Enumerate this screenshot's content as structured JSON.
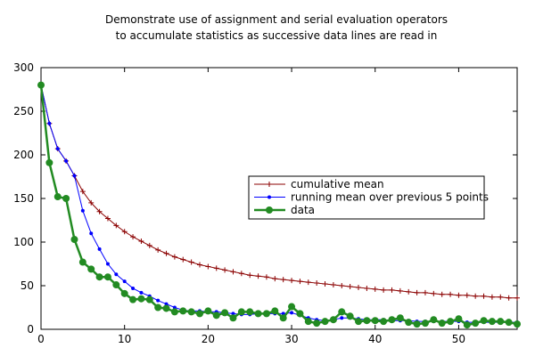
{
  "chart_data": {
    "type": "line",
    "title_lines": [
      "Demonstrate use of assignment and serial evaluation operators",
      "to accumulate statistics as successive data lines are read in"
    ],
    "xlabel": "",
    "ylabel": "",
    "xlim": [
      0,
      57
    ],
    "ylim": [
      0,
      300
    ],
    "x_ticks": [
      0,
      10,
      20,
      30,
      40,
      50
    ],
    "y_ticks": [
      0,
      50,
      100,
      150,
      200,
      250,
      300
    ],
    "grid": false,
    "legend_position": "middle-right",
    "x": [
      0,
      1,
      2,
      3,
      4,
      5,
      6,
      7,
      8,
      9,
      10,
      11,
      12,
      13,
      14,
      15,
      16,
      17,
      18,
      19,
      20,
      21,
      22,
      23,
      24,
      25,
      26,
      27,
      28,
      29,
      30,
      31,
      32,
      33,
      34,
      35,
      36,
      37,
      38,
      39,
      40,
      41,
      42,
      43,
      44,
      45,
      46,
      47,
      48,
      49,
      50,
      51,
      52,
      53,
      54,
      55,
      56,
      57
    ],
    "series": [
      {
        "name": "cumulative mean",
        "color": "#8b0000",
        "marker": "plus",
        "values": [
          280,
          236,
          207,
          193,
          176,
          158,
          145,
          135,
          127,
          119,
          112,
          106,
          101,
          96,
          91,
          87,
          83,
          80,
          77,
          74,
          72,
          70,
          68,
          66,
          64,
          62,
          61,
          60,
          58,
          57,
          56,
          55,
          54,
          53,
          52,
          51,
          50,
          49,
          48,
          47,
          46,
          45,
          45,
          44,
          43,
          42,
          42,
          41,
          40,
          40,
          39,
          39,
          38,
          38,
          37,
          37,
          36,
          36
        ]
      },
      {
        "name": "running mean over previous 5 points",
        "color": "#0000ff",
        "marker": "dot",
        "values": [
          280,
          236,
          207,
          193,
          176,
          136,
          110,
          92,
          75,
          63,
          55,
          47,
          42,
          38,
          33,
          29,
          25,
          22,
          21,
          21,
          20,
          20,
          19,
          18,
          17,
          17,
          18,
          18,
          18,
          18,
          19,
          16,
          13,
          11,
          10,
          11,
          13,
          13,
          12,
          11,
          11,
          11,
          10,
          10,
          10,
          9,
          9,
          9,
          9,
          9,
          9,
          8,
          8,
          8,
          8,
          8,
          8,
          8
        ]
      },
      {
        "name": "data",
        "color": "#228b22",
        "marker": "circle",
        "values": [
          280,
          191,
          152,
          150,
          103,
          77,
          69,
          60,
          60,
          51,
          41,
          34,
          35,
          34,
          25,
          24,
          20,
          21,
          20,
          18,
          21,
          16,
          19,
          13,
          20,
          20,
          18,
          18,
          21,
          13,
          26,
          18,
          9,
          7,
          9,
          11,
          20,
          15,
          9,
          10,
          10,
          9,
          11,
          13,
          8,
          6,
          7,
          11,
          7,
          9,
          12,
          5,
          7,
          10,
          9,
          9,
          8,
          6
        ]
      }
    ]
  }
}
